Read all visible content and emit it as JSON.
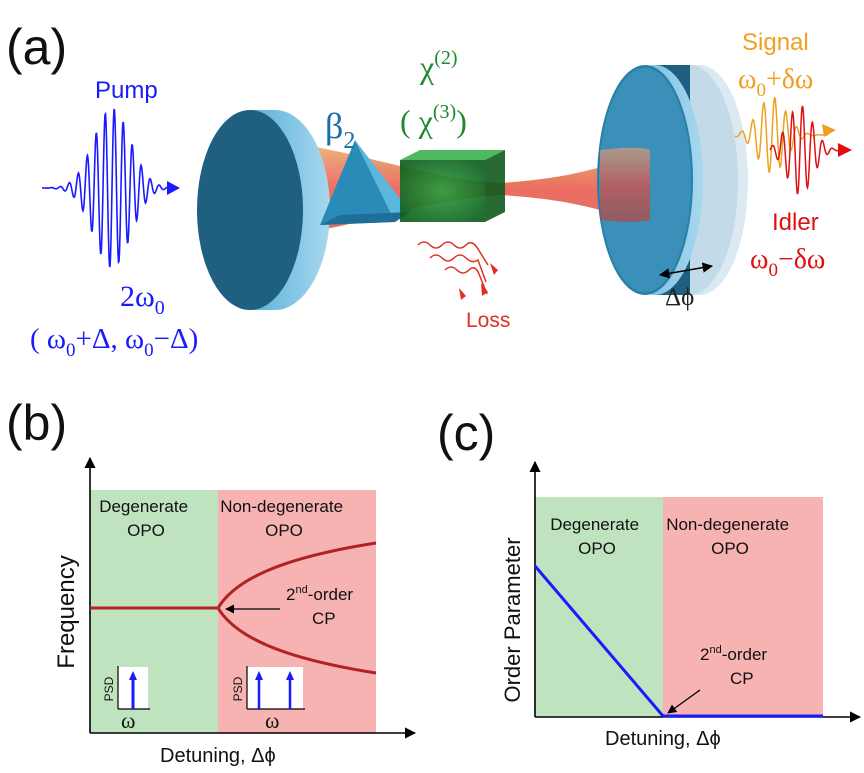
{
  "panel_a": {
    "label": "(a)",
    "pump": {
      "title": "Pump",
      "freq_main": "2ω",
      "freq_main_sub": "0",
      "freq_pair": [
        "( ω",
        "0",
        "+Δ, ω",
        "0",
        "−Δ)"
      ]
    },
    "dispersion": {
      "symbol": "β",
      "sub": "2"
    },
    "nonlinear": {
      "line1": "χ",
      "line1_sup": "(2)",
      "line2_open": "( χ",
      "line2_sup": "(3)",
      "line2_close": ")"
    },
    "loss": "Loss",
    "signal": {
      "title": "Signal",
      "freq": "ω",
      "freq_sub": "0",
      "freq_rest": "+δω"
    },
    "idler": {
      "title": "Idler",
      "freq": "ω",
      "freq_sub": "0",
      "freq_rest": "−δω"
    },
    "phase": "Δϕ",
    "colors": {
      "pump": "#1a1aff",
      "signal": "#f0a020",
      "idler": "#e01010",
      "loss": "#e03020",
      "crystal": "#1e8a2e",
      "mirror": "#1f5f7f"
    }
  },
  "panel_b": {
    "label": "(b)",
    "ylabel": "Frequency",
    "xlabel": "Detuning, Δϕ",
    "region_left": [
      "Degenerate",
      "OPO"
    ],
    "region_right": [
      "Non-degenerate",
      "OPO"
    ],
    "annotation": {
      "pre": "2",
      "sup": "nd",
      "post": "-order",
      "line2": "CP"
    },
    "inset_ylabel": "PSD",
    "inset_xlabel": "ω",
    "colors": {
      "left": "#bfe3bf",
      "right": "#f7b2b2",
      "curve": "#b22222",
      "inset_line": "#1a1aff"
    }
  },
  "panel_c": {
    "label": "(c)",
    "ylabel": "Order Parameter",
    "xlabel": "Detuning, Δϕ",
    "region_left": [
      "Degenerate",
      "OPO"
    ],
    "region_right": [
      "Non-degenerate",
      "OPO"
    ],
    "annotation": {
      "pre": "2",
      "sup": "nd",
      "post": "-order",
      "line2": "CP"
    },
    "colors": {
      "left": "#bfe3bf",
      "right": "#f7b2b2",
      "line": "#1a1aff"
    }
  }
}
